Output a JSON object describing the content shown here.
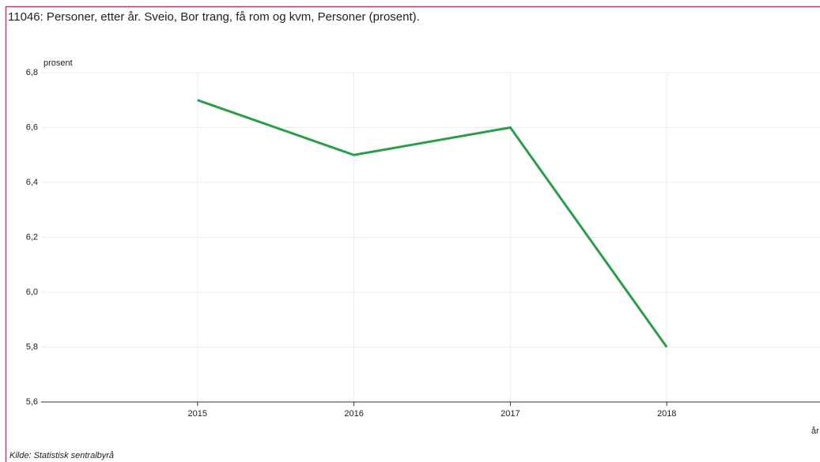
{
  "chart_data": {
    "type": "line",
    "title": "11046: Personer, etter år. Sveio, Bor trang, få rom og kvm, Personer (prosent).",
    "y_label": "prosent",
    "x_label": "år",
    "source": "Kilde:  Statistisk sentralbyrå",
    "x": [
      2015,
      2016,
      2017,
      2018
    ],
    "series": [
      {
        "name": "Personer",
        "color": "#2a9d4a",
        "values": [
          6.7,
          6.5,
          6.6,
          5.8
        ]
      }
    ],
    "xlim": [
      2014,
      2019
    ],
    "xticks": [
      2015,
      2016,
      2017,
      2018
    ],
    "ylim": [
      5.6,
      6.8
    ],
    "yticks": [
      {
        "value": 5.6,
        "label": "5,6"
      },
      {
        "value": 5.8,
        "label": "5,8"
      },
      {
        "value": 6.0,
        "label": "6,0"
      },
      {
        "value": 6.2,
        "label": "6,2"
      },
      {
        "value": 6.4,
        "label": "6,4"
      },
      {
        "value": 6.6,
        "label": "6,6"
      },
      {
        "value": 6.8,
        "label": "6,8"
      }
    ],
    "grid": true
  }
}
